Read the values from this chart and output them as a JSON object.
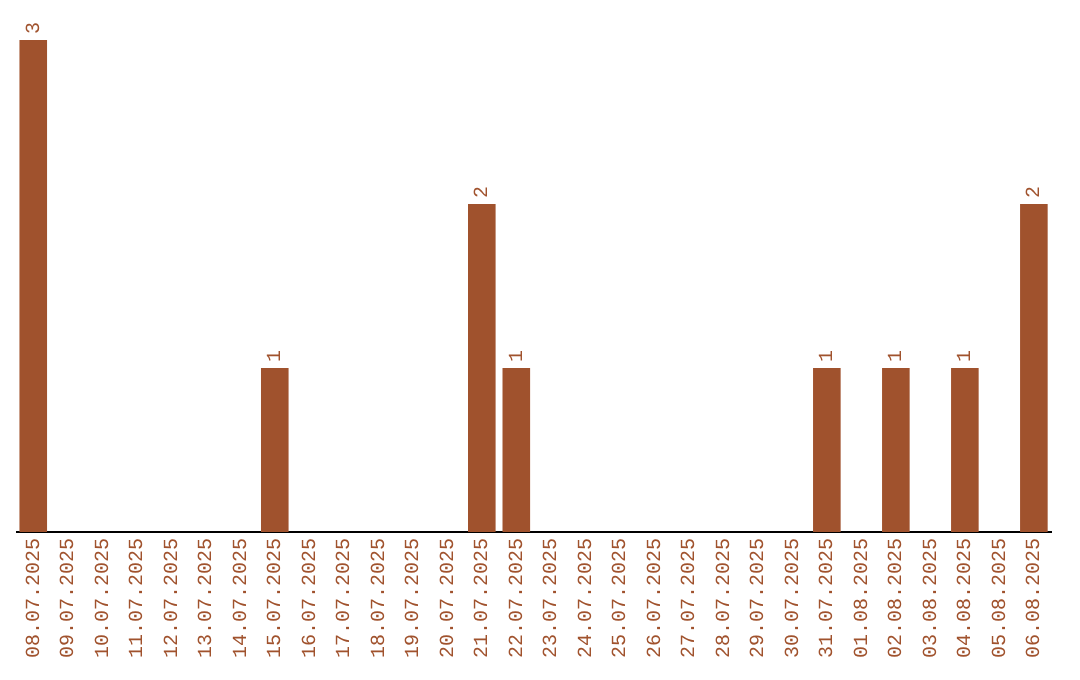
{
  "chart_data": {
    "type": "bar",
    "categories": [
      "08.07.2025",
      "09.07.2025",
      "10.07.2025",
      "11.07.2025",
      "12.07.2025",
      "13.07.2025",
      "14.07.2025",
      "15.07.2025",
      "16.07.2025",
      "17.07.2025",
      "18.07.2025",
      "19.07.2025",
      "20.07.2025",
      "21.07.2025",
      "22.07.2025",
      "23.07.2025",
      "24.07.2025",
      "25.07.2025",
      "26.07.2025",
      "27.07.2025",
      "28.07.2025",
      "29.07.2025",
      "30.07.2025",
      "31.07.2025",
      "01.08.2025",
      "02.08.2025",
      "03.08.2025",
      "04.08.2025",
      "05.08.2025",
      "06.08.2025"
    ],
    "values": [
      3,
      0,
      0,
      0,
      0,
      0,
      0,
      1,
      0,
      0,
      0,
      0,
      0,
      2,
      1,
      0,
      0,
      0,
      0,
      0,
      0,
      0,
      0,
      1,
      0,
      1,
      0,
      1,
      0,
      2
    ],
    "value_labels": [
      "3",
      null,
      null,
      null,
      null,
      null,
      null,
      "1",
      null,
      null,
      null,
      null,
      null,
      "2",
      "1",
      null,
      null,
      null,
      null,
      null,
      null,
      null,
      null,
      "1",
      null,
      "1",
      null,
      "1",
      null,
      "2"
    ],
    "color": "#a0522d",
    "grid": false,
    "legend": false
  }
}
